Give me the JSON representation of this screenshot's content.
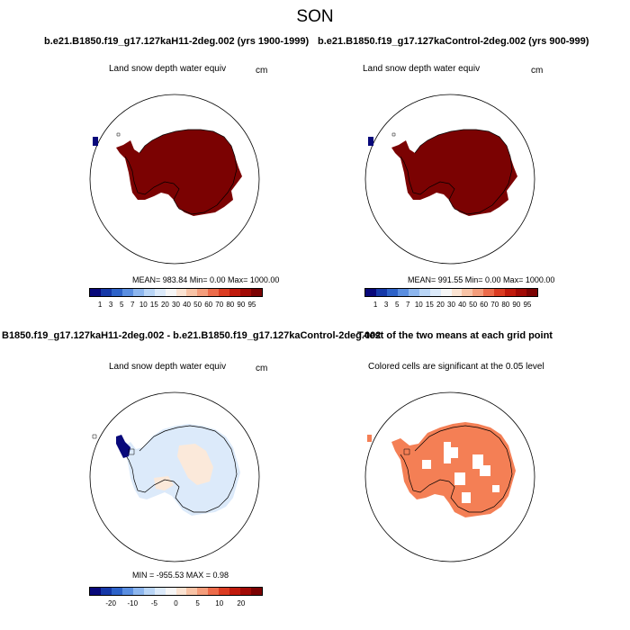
{
  "season": "SON",
  "top_left": {
    "title": "b.e21.B1850.f19_g17.127kaH11-2deg.002 (yrs 1900-1999)",
    "label": "Land snow depth water equiv",
    "units": "cm",
    "stats": "MEAN= 983.84  Min=   0.00  Max= 1000.00"
  },
  "top_right": {
    "title": "b.e21.B1850.f19_g17.127kaControl-2deg.002 (yrs 900-999)",
    "label": "Land snow depth water equiv",
    "units": "cm",
    "stats": "MEAN= 991.55  Min=   0.00  Max= 1000.00"
  },
  "bottom_titles": {
    "left": "B1850.f19_g17.127kaH11-2deg.002 - b.e21.B1850.f19_g17.127kaControl-2deg.002",
    "right": "T-test of the two means at each grid point"
  },
  "bottom_left": {
    "label": "Land snow depth water equiv",
    "units": "cm",
    "stats": "MIN = -955.53 MAX =   0.98"
  },
  "bottom_right": {
    "label": "Colored cells are significant at the 0.05 level"
  },
  "colorbar_abs": {
    "ticks": [
      "1",
      "3",
      "5",
      "7",
      "10",
      "15",
      "20",
      "30",
      "40",
      "50",
      "60",
      "70",
      "80",
      "90",
      "95"
    ],
    "colors": [
      "#08087a",
      "#1538a8",
      "#2d62c8",
      "#5a8ee0",
      "#8db6ee",
      "#b9d5f6",
      "#dceafa",
      "#f6f6f6",
      "#fbe3d2",
      "#f8c3a6",
      "#f49d7b",
      "#ec6b4a",
      "#db3c22",
      "#c01a0c",
      "#a10a05",
      "#7b0202"
    ]
  },
  "colorbar_diff": {
    "ticks": [
      "-20",
      "-10",
      "-5",
      "0",
      "5",
      "10",
      "20"
    ],
    "colors": [
      "#08087a",
      "#1538a8",
      "#2d62c8",
      "#5a8ee0",
      "#8db6ee",
      "#b9d5f6",
      "#dceafa",
      "#f6f6f6",
      "#fbe3d2",
      "#f8c3a6",
      "#f49d7b",
      "#ec6b4a",
      "#db3c22",
      "#c01a0c",
      "#a10a05",
      "#7b0202"
    ]
  },
  "map_colors": {
    "snow_full": "#7b0202",
    "diff_small": "#dceafa",
    "diff_pos": "#fbe9da",
    "diff_neg": "#08087a",
    "ttest": "#f47f55"
  }
}
